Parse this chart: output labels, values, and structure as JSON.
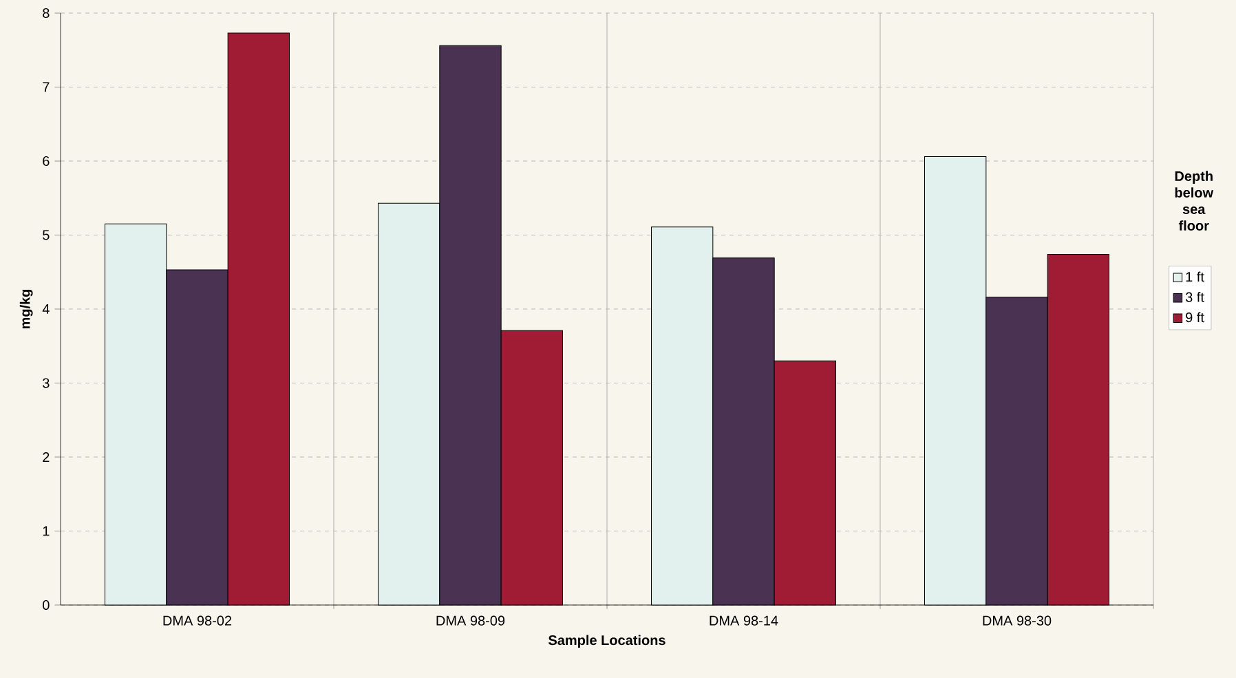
{
  "chart_data": {
    "type": "bar",
    "xlabel": "Sample Locations",
    "ylabel": "mg/kg",
    "legend_title": "Depth below sea floor",
    "categories": [
      "DMA 98-02",
      "DMA 98-09",
      "DMA 98-14",
      "DMA 98-30"
    ],
    "series": [
      {
        "name": "1 ft",
        "color": "#e2f0ee",
        "values": [
          5.15,
          5.43,
          5.11,
          6.06
        ]
      },
      {
        "name": "3 ft",
        "color": "#4a3352",
        "values": [
          4.53,
          7.56,
          4.69,
          4.16
        ]
      },
      {
        "name": "9 ft",
        "color": "#a01c34",
        "values": [
          7.73,
          3.71,
          3.3,
          4.74
        ]
      }
    ],
    "ylim": [
      0,
      8
    ],
    "yticks": [
      0,
      1,
      2,
      3,
      4,
      5,
      6,
      7,
      8
    ],
    "grid": true,
    "legend": "right"
  }
}
